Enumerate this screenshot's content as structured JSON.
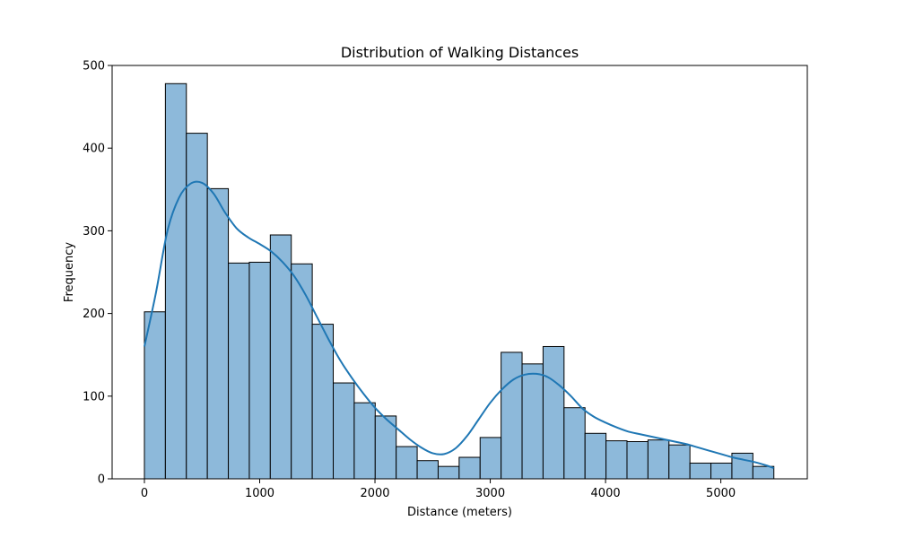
{
  "chart_data": {
    "type": "bar",
    "subtype": "histogram",
    "title": "Distribution of Walking Distances",
    "xlabel": "Distance (meters)",
    "ylabel": "Frequency",
    "xlim": [
      -280,
      5750
    ],
    "ylim": [
      0,
      500
    ],
    "xticks": [
      0,
      1000,
      2000,
      3000,
      4000,
      5000
    ],
    "yticks": [
      0,
      100,
      200,
      300,
      400,
      500
    ],
    "grid": false,
    "bin_width": 182,
    "bin_edges": [
      0,
      182,
      364,
      546,
      728,
      910,
      1092,
      1274,
      1456,
      1638,
      1820,
      2002,
      2184,
      2366,
      2548,
      2730,
      2912,
      3094,
      3276,
      3458,
      3640,
      3822,
      4004,
      4186,
      4368,
      4550,
      4732,
      4914,
      5096,
      5278,
      5460
    ],
    "values": [
      202,
      478,
      418,
      351,
      261,
      262,
      295,
      260,
      187,
      116,
      92,
      76,
      39,
      22,
      15,
      26,
      50,
      153,
      139,
      160,
      86,
      55,
      46,
      45,
      47,
      41,
      19,
      19,
      31,
      15
    ],
    "kde": {
      "x": [
        0,
        100,
        200,
        300,
        400,
        500,
        600,
        700,
        800,
        900,
        1000,
        1100,
        1200,
        1300,
        1400,
        1500,
        1600,
        1700,
        1800,
        1900,
        2000,
        2100,
        2200,
        2300,
        2400,
        2500,
        2600,
        2700,
        2800,
        2900,
        3000,
        3100,
        3200,
        3300,
        3400,
        3500,
        3600,
        3700,
        3800,
        3900,
        4000,
        4100,
        4200,
        4300,
        4400,
        4500,
        4600,
        4700,
        4800,
        4900,
        5000,
        5100,
        5200,
        5300,
        5400,
        5460
      ],
      "y": [
        160,
        225,
        300,
        340,
        357,
        358,
        345,
        322,
        303,
        292,
        284,
        275,
        262,
        245,
        222,
        195,
        168,
        143,
        122,
        103,
        86,
        72,
        60,
        48,
        38,
        31,
        30,
        37,
        52,
        72,
        92,
        108,
        120,
        126,
        127,
        123,
        113,
        100,
        85,
        75,
        68,
        62,
        57,
        54,
        51,
        48,
        45,
        42,
        38,
        34,
        30,
        26,
        23,
        20,
        16,
        13
      ]
    },
    "colors": {
      "bar_fill": "#8db9da",
      "bar_edge": "#000000",
      "kde_line": "#1f77b4"
    }
  }
}
